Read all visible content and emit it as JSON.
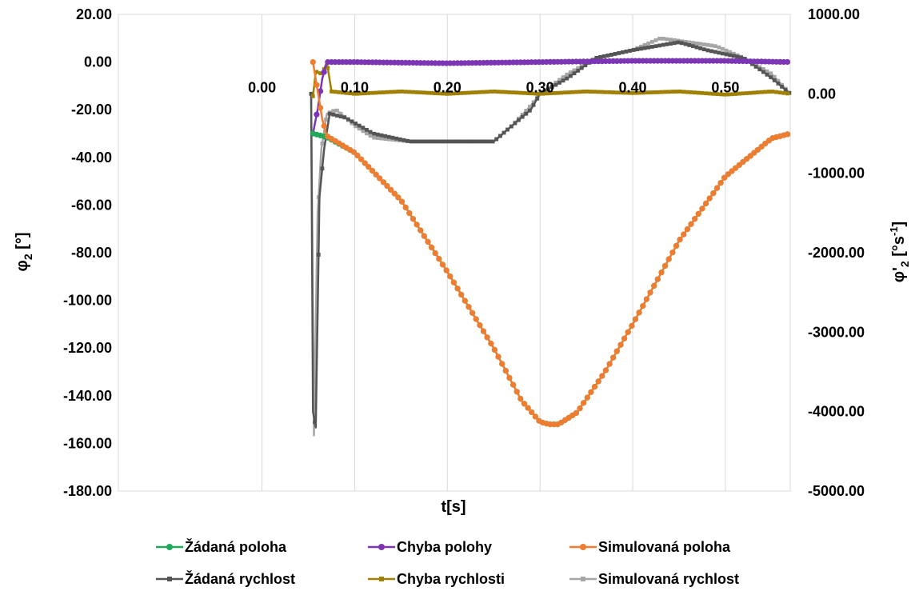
{
  "chart_data": {
    "type": "line",
    "title": "",
    "xlabel": "t[s]",
    "ylabel_left": "φ2 [°]",
    "ylabel_right": "φ'2 [°s-1]",
    "xlim": [
      -0.155,
      0.57
    ],
    "ylim_left": [
      -180,
      20
    ],
    "ylim_right": [
      -5000,
      1000
    ],
    "grid": "vertical",
    "legend_position": "bottom",
    "x_ticks": [
      "0.00",
      "0.10",
      "0.20",
      "0.30",
      "0.40",
      "0.50"
    ],
    "x_tick_values": [
      0.0,
      0.1,
      0.2,
      0.3,
      0.4,
      0.5
    ],
    "y_left_ticks": [
      "20.00",
      "0.00",
      "-20.00",
      "-40.00",
      "-60.00",
      "-80.00",
      "-100.00",
      "-120.00",
      "-140.00",
      "-160.00",
      "-180.00"
    ],
    "y_right_ticks": [
      "1000.00",
      "0.00",
      "-1000.00",
      "-2000.00",
      "-3000.00",
      "-4000.00",
      "-5000.00"
    ],
    "series": [
      {
        "name": "Žádaná poloha",
        "axis": "left",
        "color": "#22a85a",
        "marker": "circle",
        "points": [
          [
            0.055,
            -30
          ],
          [
            0.06,
            -30.5
          ],
          [
            0.065,
            -31
          ],
          [
            0.07,
            -31.5
          ],
          [
            0.1,
            -38
          ],
          [
            0.15,
            -58
          ],
          [
            0.2,
            -88
          ],
          [
            0.25,
            -120
          ],
          [
            0.28,
            -142
          ],
          [
            0.3,
            -151
          ],
          [
            0.31,
            -152
          ],
          [
            0.32,
            -152
          ],
          [
            0.34,
            -147
          ],
          [
            0.37,
            -130
          ],
          [
            0.4,
            -110
          ],
          [
            0.45,
            -75
          ],
          [
            0.5,
            -48
          ],
          [
            0.55,
            -32
          ],
          [
            0.57,
            -30
          ]
        ]
      },
      {
        "name": "Chyba polohy",
        "axis": "left",
        "color": "#7b35b5",
        "marker": "circle",
        "points": [
          [
            0.055,
            -30
          ],
          [
            0.06,
            -20
          ],
          [
            0.065,
            -7
          ],
          [
            0.07,
            0
          ],
          [
            0.1,
            0
          ],
          [
            0.2,
            -0.5
          ],
          [
            0.3,
            0
          ],
          [
            0.4,
            0.5
          ],
          [
            0.5,
            0.5
          ],
          [
            0.57,
            0
          ]
        ]
      },
      {
        "name": "Simulovaná poloha",
        "axis": "left",
        "color": "#ee7d31",
        "marker": "circle",
        "points": [
          [
            0.055,
            0
          ],
          [
            0.06,
            -12
          ],
          [
            0.065,
            -24
          ],
          [
            0.07,
            -31
          ],
          [
            0.1,
            -38
          ],
          [
            0.15,
            -58
          ],
          [
            0.2,
            -88
          ],
          [
            0.25,
            -120
          ],
          [
            0.28,
            -142
          ],
          [
            0.3,
            -151
          ],
          [
            0.31,
            -152
          ],
          [
            0.32,
            -152
          ],
          [
            0.34,
            -147
          ],
          [
            0.37,
            -130
          ],
          [
            0.4,
            -110
          ],
          [
            0.45,
            -75
          ],
          [
            0.5,
            -48
          ],
          [
            0.55,
            -32
          ],
          [
            0.57,
            -30
          ]
        ]
      },
      {
        "name": "Žádaná rychlost",
        "axis": "right",
        "color": "#555555",
        "marker": "square",
        "points": [
          [
            0.053,
            0
          ],
          [
            0.055,
            -4000
          ],
          [
            0.058,
            -4200
          ],
          [
            0.062,
            -1300
          ],
          [
            0.067,
            -700
          ],
          [
            0.073,
            -250
          ],
          [
            0.09,
            -300
          ],
          [
            0.12,
            -500
          ],
          [
            0.16,
            -600
          ],
          [
            0.2,
            -600
          ],
          [
            0.25,
            -600
          ],
          [
            0.27,
            -400
          ],
          [
            0.29,
            -200
          ],
          [
            0.3,
            0
          ],
          [
            0.33,
            200
          ],
          [
            0.36,
            450
          ],
          [
            0.4,
            550
          ],
          [
            0.45,
            650
          ],
          [
            0.48,
            550
          ],
          [
            0.52,
            450
          ],
          [
            0.55,
            200
          ],
          [
            0.565,
            50
          ],
          [
            0.57,
            0
          ]
        ]
      },
      {
        "name": "Chyba rychlosti",
        "axis": "right",
        "color": "#a08000",
        "marker": "square",
        "points": [
          [
            0.055,
            -30
          ],
          [
            0.058,
            280
          ],
          [
            0.065,
            250
          ],
          [
            0.07,
            400
          ],
          [
            0.075,
            30
          ],
          [
            0.1,
            0
          ],
          [
            0.15,
            30
          ],
          [
            0.2,
            0
          ],
          [
            0.25,
            30
          ],
          [
            0.3,
            0
          ],
          [
            0.35,
            30
          ],
          [
            0.4,
            10
          ],
          [
            0.45,
            30
          ],
          [
            0.5,
            -10
          ],
          [
            0.55,
            30
          ],
          [
            0.57,
            0
          ]
        ]
      },
      {
        "name": "Simulovaná rychlost",
        "axis": "right",
        "color": "#a6a6a6",
        "marker": "square",
        "points": [
          [
            0.053,
            0
          ],
          [
            0.056,
            -4300
          ],
          [
            0.06,
            -1500
          ],
          [
            0.064,
            -700
          ],
          [
            0.07,
            -250
          ],
          [
            0.08,
            -200
          ],
          [
            0.1,
            -400
          ],
          [
            0.12,
            -550
          ],
          [
            0.16,
            -600
          ],
          [
            0.2,
            -600
          ],
          [
            0.25,
            -600
          ],
          [
            0.27,
            -400
          ],
          [
            0.29,
            -150
          ],
          [
            0.3,
            0
          ],
          [
            0.33,
            250
          ],
          [
            0.36,
            450
          ],
          [
            0.4,
            550
          ],
          [
            0.43,
            700
          ],
          [
            0.46,
            650
          ],
          [
            0.49,
            600
          ],
          [
            0.52,
            450
          ],
          [
            0.55,
            250
          ],
          [
            0.57,
            0
          ]
        ]
      }
    ]
  }
}
